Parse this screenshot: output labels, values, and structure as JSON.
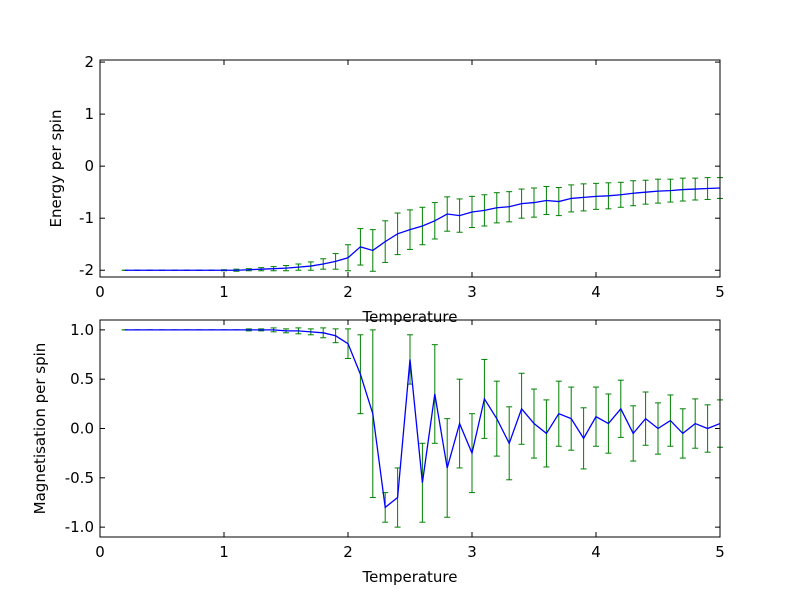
{
  "chart_data": [
    {
      "type": "errorbar",
      "xlabel": "Temperature",
      "ylabel": "Energy per spin",
      "x": [
        0.2,
        0.3,
        0.4,
        0.5,
        0.6,
        0.7,
        0.8,
        0.9,
        1.0,
        1.1,
        1.2,
        1.3,
        1.4,
        1.5,
        1.6,
        1.7,
        1.8,
        1.9,
        2.0,
        2.1,
        2.2,
        2.3,
        2.4,
        2.5,
        2.6,
        2.7,
        2.8,
        2.9,
        3.0,
        3.1,
        3.2,
        3.3,
        3.4,
        3.5,
        3.6,
        3.7,
        3.8,
        3.9,
        4.0,
        4.1,
        4.2,
        4.3,
        4.4,
        4.5,
        4.6,
        4.7,
        4.8,
        4.9,
        5.0
      ],
      "series": [
        {
          "color": "#0000ff",
          "errcolor": "#008000",
          "values": [
            -2,
            -2,
            -2,
            -2,
            -2,
            -2,
            -2,
            -2,
            -2,
            -2,
            -1.99,
            -1.98,
            -1.97,
            -1.96,
            -1.94,
            -1.92,
            -1.88,
            -1.83,
            -1.76,
            -1.55,
            -1.62,
            -1.45,
            -1.3,
            -1.22,
            -1.15,
            -1.05,
            -0.92,
            -0.95,
            -0.88,
            -0.85,
            -0.8,
            -0.78,
            -0.72,
            -0.7,
            -0.66,
            -0.68,
            -0.62,
            -0.6,
            -0.58,
            -0.57,
            -0.55,
            -0.52,
            -0.5,
            -0.48,
            -0.47,
            -0.45,
            -0.44,
            -0.43,
            -0.42
          ],
          "errors": [
            0,
            0,
            0,
            0,
            0,
            0,
            0,
            0,
            0.01,
            0.02,
            0.02,
            0.03,
            0.04,
            0.05,
            0.06,
            0.08,
            0.1,
            0.15,
            0.25,
            0.35,
            0.4,
            0.4,
            0.4,
            0.38,
            0.36,
            0.35,
            0.33,
            0.32,
            0.3,
            0.3,
            0.29,
            0.29,
            0.28,
            0.28,
            0.27,
            0.27,
            0.26,
            0.26,
            0.25,
            0.25,
            0.24,
            0.24,
            0.23,
            0.23,
            0.22,
            0.22,
            0.21,
            0.21,
            0.2
          ]
        }
      ],
      "xlim": [
        0,
        5
      ],
      "xticks": [
        0,
        1,
        2,
        3,
        4,
        5
      ],
      "ylim": [
        -2.13,
        2.04
      ],
      "yticks": [
        -2,
        -1,
        0,
        1,
        2
      ]
    },
    {
      "type": "errorbar",
      "xlabel": "Temperature",
      "ylabel": "Magnetisation per spin",
      "x": [
        0.2,
        0.3,
        0.4,
        0.5,
        0.6,
        0.7,
        0.8,
        0.9,
        1.0,
        1.1,
        1.2,
        1.3,
        1.4,
        1.5,
        1.6,
        1.7,
        1.8,
        1.9,
        2.0,
        2.1,
        2.2,
        2.3,
        2.4,
        2.5,
        2.6,
        2.7,
        2.8,
        2.9,
        3.0,
        3.1,
        3.2,
        3.3,
        3.4,
        3.5,
        3.6,
        3.7,
        3.8,
        3.9,
        4.0,
        4.1,
        4.2,
        4.3,
        4.4,
        4.5,
        4.6,
        4.7,
        4.8,
        4.9,
        5.0
      ],
      "series": [
        {
          "color": "#0000ff",
          "errcolor": "#008000",
          "values": [
            1,
            1,
            1,
            1,
            1,
            1,
            1,
            1,
            1,
            1,
            1,
            1,
            1,
            0.99,
            0.99,
            0.98,
            0.97,
            0.94,
            0.86,
            0.55,
            0.15,
            -0.8,
            -0.7,
            0.7,
            -0.55,
            0.35,
            -0.4,
            0.05,
            -0.25,
            0.3,
            0.1,
            -0.15,
            0.2,
            0.05,
            -0.05,
            0.15,
            0.1,
            -0.1,
            0.12,
            0.05,
            0.2,
            -0.05,
            0.1,
            0.0,
            0.08,
            -0.05,
            0.05,
            0.0,
            0.05
          ],
          "errors": [
            0,
            0,
            0,
            0,
            0,
            0,
            0,
            0,
            0,
            0,
            0.01,
            0.01,
            0.02,
            0.02,
            0.03,
            0.03,
            0.05,
            0.07,
            0.15,
            0.4,
            0.85,
            0.15,
            0.3,
            0.25,
            0.4,
            0.5,
            0.5,
            0.45,
            0.4,
            0.4,
            0.38,
            0.37,
            0.36,
            0.35,
            0.34,
            0.33,
            0.32,
            0.31,
            0.3,
            0.3,
            0.29,
            0.28,
            0.27,
            0.26,
            0.26,
            0.25,
            0.25,
            0.24,
            0.24
          ]
        }
      ],
      "xlim": [
        0,
        5
      ],
      "xticks": [
        0,
        1,
        2,
        3,
        4,
        5
      ],
      "ylim": [
        -1.1,
        1.1
      ],
      "yticks": [
        {
          "value": -1,
          "label": "-1.0"
        },
        {
          "value": -0.5,
          "label": "-0.5"
        },
        {
          "value": 0,
          "label": "0.0"
        },
        {
          "value": 0.5,
          "label": "0.5"
        },
        {
          "value": 1,
          "label": "1.0"
        }
      ]
    }
  ]
}
